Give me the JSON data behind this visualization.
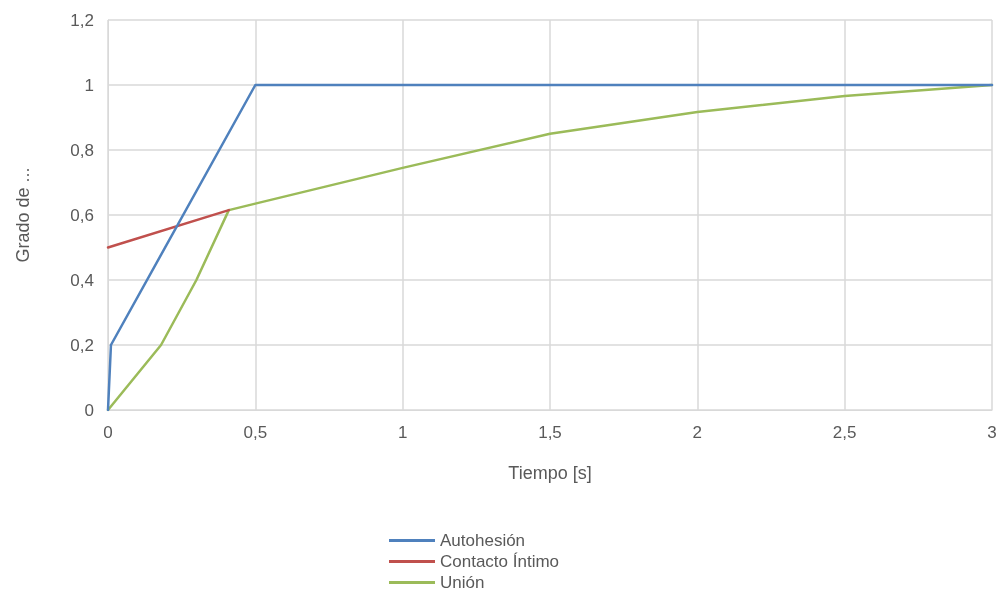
{
  "chart_data": {
    "type": "line",
    "xlabel": "Tiempo [s]",
    "ylabel": "Grado de ...",
    "xlim": [
      0,
      3
    ],
    "xticks": [
      {
        "value": 0,
        "label": "0"
      },
      {
        "value": 0.5,
        "label": "0,5"
      },
      {
        "value": 1,
        "label": "1"
      },
      {
        "value": 1.5,
        "label": "1,5"
      },
      {
        "value": 2,
        "label": "2"
      },
      {
        "value": 2.5,
        "label": "2,5"
      },
      {
        "value": 3,
        "label": "3"
      }
    ],
    "ylim": [
      0,
      1.2
    ],
    "yticks": [
      {
        "value": 0,
        "label": "0"
      },
      {
        "value": 0.2,
        "label": "0,2"
      },
      {
        "value": 0.4,
        "label": "0,4"
      },
      {
        "value": 0.6,
        "label": "0,6"
      },
      {
        "value": 0.8,
        "label": "0,8"
      },
      {
        "value": 1,
        "label": "1"
      },
      {
        "value": 1.2,
        "label": "1,2"
      }
    ],
    "grid": true,
    "legend": "bottom",
    "marker": "none",
    "line_style": "solid",
    "series": [
      {
        "name": "Autohesión",
        "color": "#4f81bd",
        "x": [
          0,
          0.01,
          0.5,
          3
        ],
        "values": [
          0,
          0.2,
          1,
          1
        ]
      },
      {
        "name": "Contacto Íntimo",
        "color": "#c0504d",
        "x": [
          0,
          0.41
        ],
        "values": [
          0.5,
          0.615
        ]
      },
      {
        "name": "Unión",
        "color": "#9bbb59",
        "x": [
          0,
          0.09,
          0.18,
          0.3,
          0.41,
          0.5,
          1,
          1.5,
          2,
          2.5,
          3
        ],
        "values": [
          0,
          0.1,
          0.2,
          0.4,
          0.615,
          0.635,
          0.745,
          0.85,
          0.917,
          0.966,
          1
        ]
      }
    ]
  }
}
